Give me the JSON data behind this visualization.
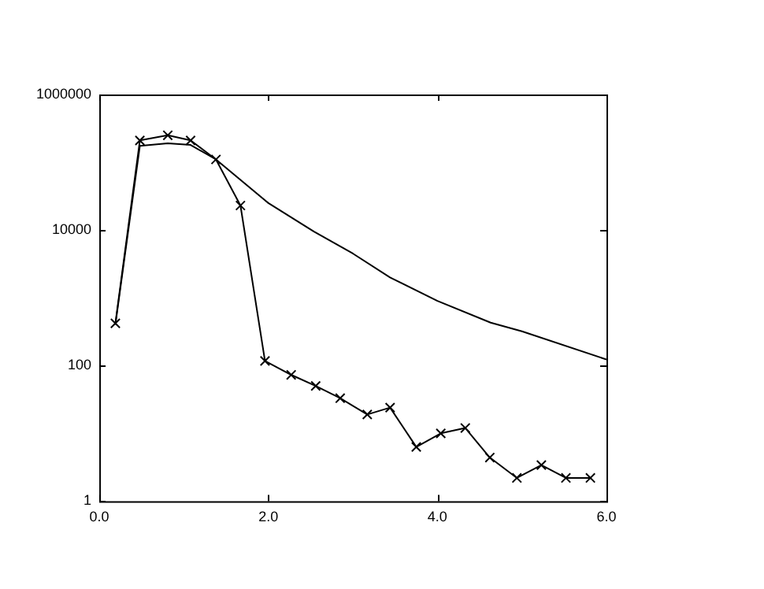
{
  "chart_data": {
    "type": "line",
    "log": "y",
    "xlim": [
      0,
      6
    ],
    "xticks": [
      {
        "value": 0,
        "label": "0.0"
      },
      {
        "value": 2,
        "label": "2.0"
      },
      {
        "value": 4,
        "label": "4.0"
      },
      {
        "value": 6,
        "label": "6.0"
      }
    ],
    "ylim": [
      1,
      1000000
    ],
    "yticks": [
      1,
      100,
      10000,
      1000000
    ],
    "grid": false,
    "legend": false,
    "line_style": "solid",
    "series": [
      {
        "color": "#000000",
        "marker": "cross",
        "x": [
          0.19,
          0.48,
          0.81,
          1.08,
          1.38,
          1.67,
          1.96,
          2.27,
          2.56,
          2.85,
          3.17,
          3.44,
          3.75,
          4.04,
          4.33,
          4.62,
          4.94,
          5.23,
          5.52,
          5.81
        ],
        "values": [
          420,
          210000,
          250000,
          210000,
          110000,
          23000,
          117,
          73,
          50,
          33,
          19,
          24,
          6.3,
          10,
          12,
          4.4,
          2.2,
          3.4,
          2.2,
          2.2
        ]
      },
      {
        "color": "#000000",
        "marker": "none",
        "x": [
          0.19,
          0.48,
          0.81,
          1.08,
          1.38,
          2.0,
          2.54,
          3.0,
          3.44,
          4.0,
          4.63,
          5.0,
          6.0
        ],
        "values": [
          400,
          175000,
          190000,
          180000,
          110000,
          25000,
          9500,
          4500,
          2000,
          900,
          430,
          320,
          123
        ]
      }
    ]
  }
}
